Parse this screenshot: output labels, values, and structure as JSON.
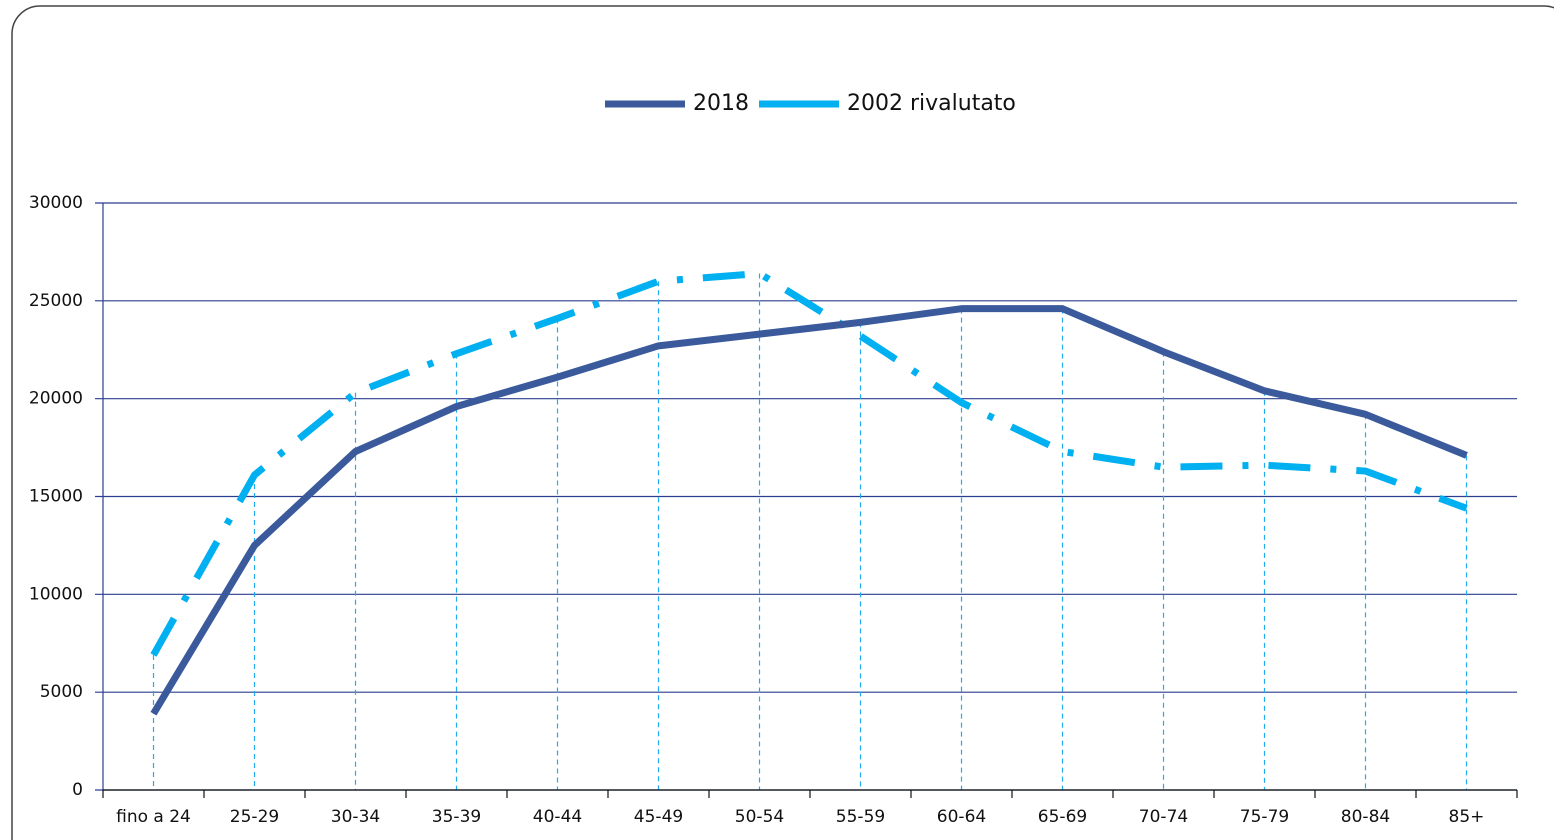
{
  "chart_data": {
    "type": "line",
    "categories": [
      "fino a 24",
      "25-29",
      "30-34",
      "35-39",
      "40-44",
      "45-49",
      "50-54",
      "55-59",
      "60-64",
      "65-69",
      "70-74",
      "75-79",
      "80-84",
      "85+"
    ],
    "series": [
      {
        "name": "2018",
        "color": "#3a5a9c",
        "values": [
          3900,
          12500,
          17300,
          19600,
          21100,
          22700,
          23300,
          23900,
          24600,
          24600,
          22400,
          20400,
          19200,
          17100
        ]
      },
      {
        "name": "2002 rivalutato",
        "color": "#00b0f0",
        "values": [
          6900,
          16100,
          20300,
          22300,
          24100,
          26000,
          26400,
          23200,
          19800,
          17300,
          16500,
          16600,
          16300,
          14400
        ]
      }
    ],
    "ylim": [
      0,
      30000
    ],
    "yticks": [
      0,
      5000,
      10000,
      15000,
      20000,
      25000,
      30000
    ],
    "grid": true,
    "legend": "top"
  }
}
